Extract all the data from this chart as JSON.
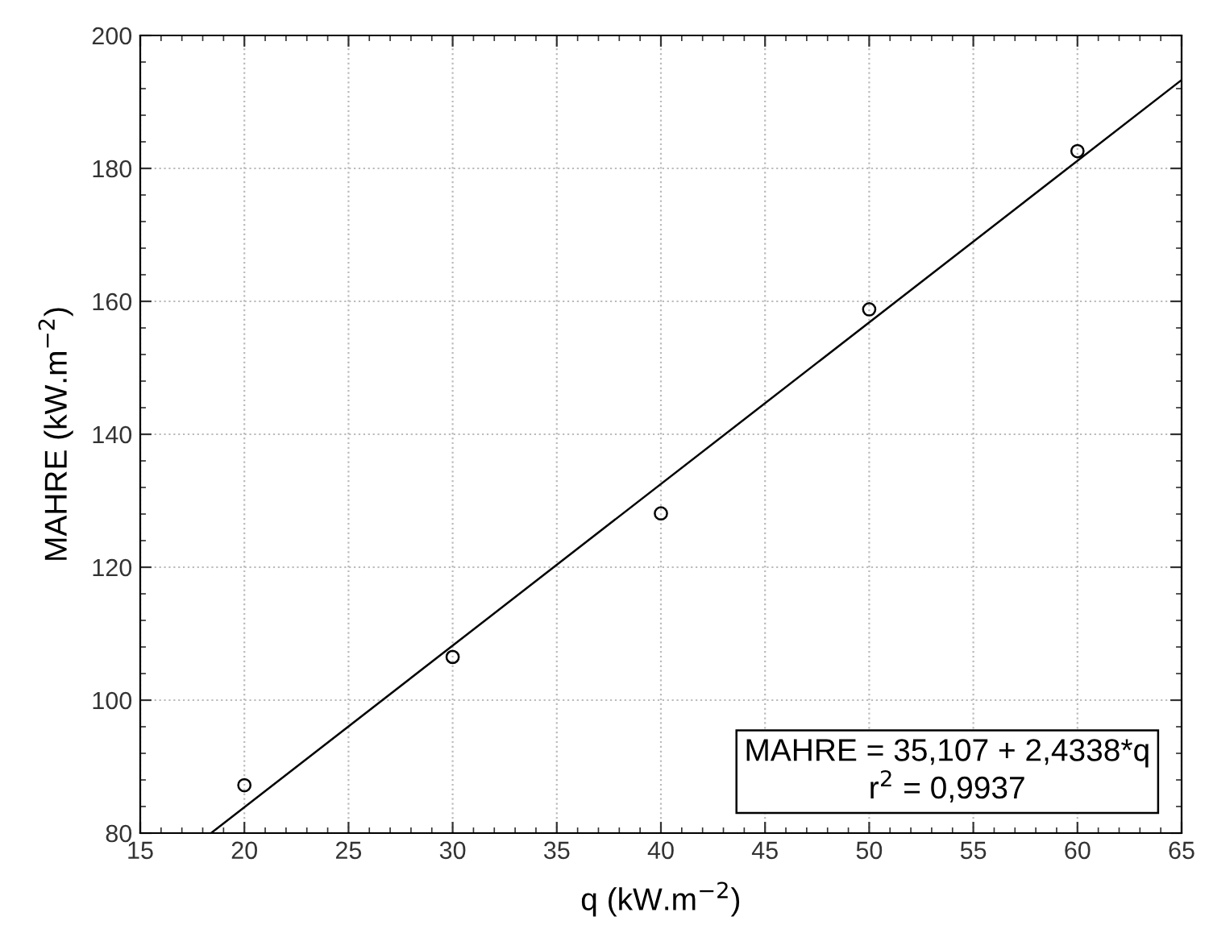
{
  "chart_data": {
    "type": "scatter",
    "xlabel": "q (kW.m$^{−2}$)",
    "ylabel": "MAHRE (kW.m$^{−2}$)",
    "series": [
      {
        "color": "#000000",
        "marker": "circle",
        "x": [
          20,
          30,
          40,
          50,
          60
        ],
        "values": [
          87.2,
          106.5,
          128.1,
          158.8,
          182.6
        ]
      },
      {
        "type": "line",
        "color": "#000000",
        "line_style": "solid",
        "marker": "none",
        "x": [
          18.4,
          65
        ],
        "values": [
          80,
          193.3
        ]
      }
    ],
    "annotations": [
      "MAHRE = 35,107 + 2,4338*q\nr$^{2}$ = 0,9937"
    ],
    "xlim": [
      15,
      65
    ],
    "xticks": [
      15,
      20,
      25,
      30,
      35,
      40,
      45,
      50,
      55,
      60,
      65
    ],
    "ylim": [
      80,
      200
    ],
    "yticks": [
      80,
      100,
      120,
      140,
      160,
      180,
      200
    ],
    "grid": true
  }
}
